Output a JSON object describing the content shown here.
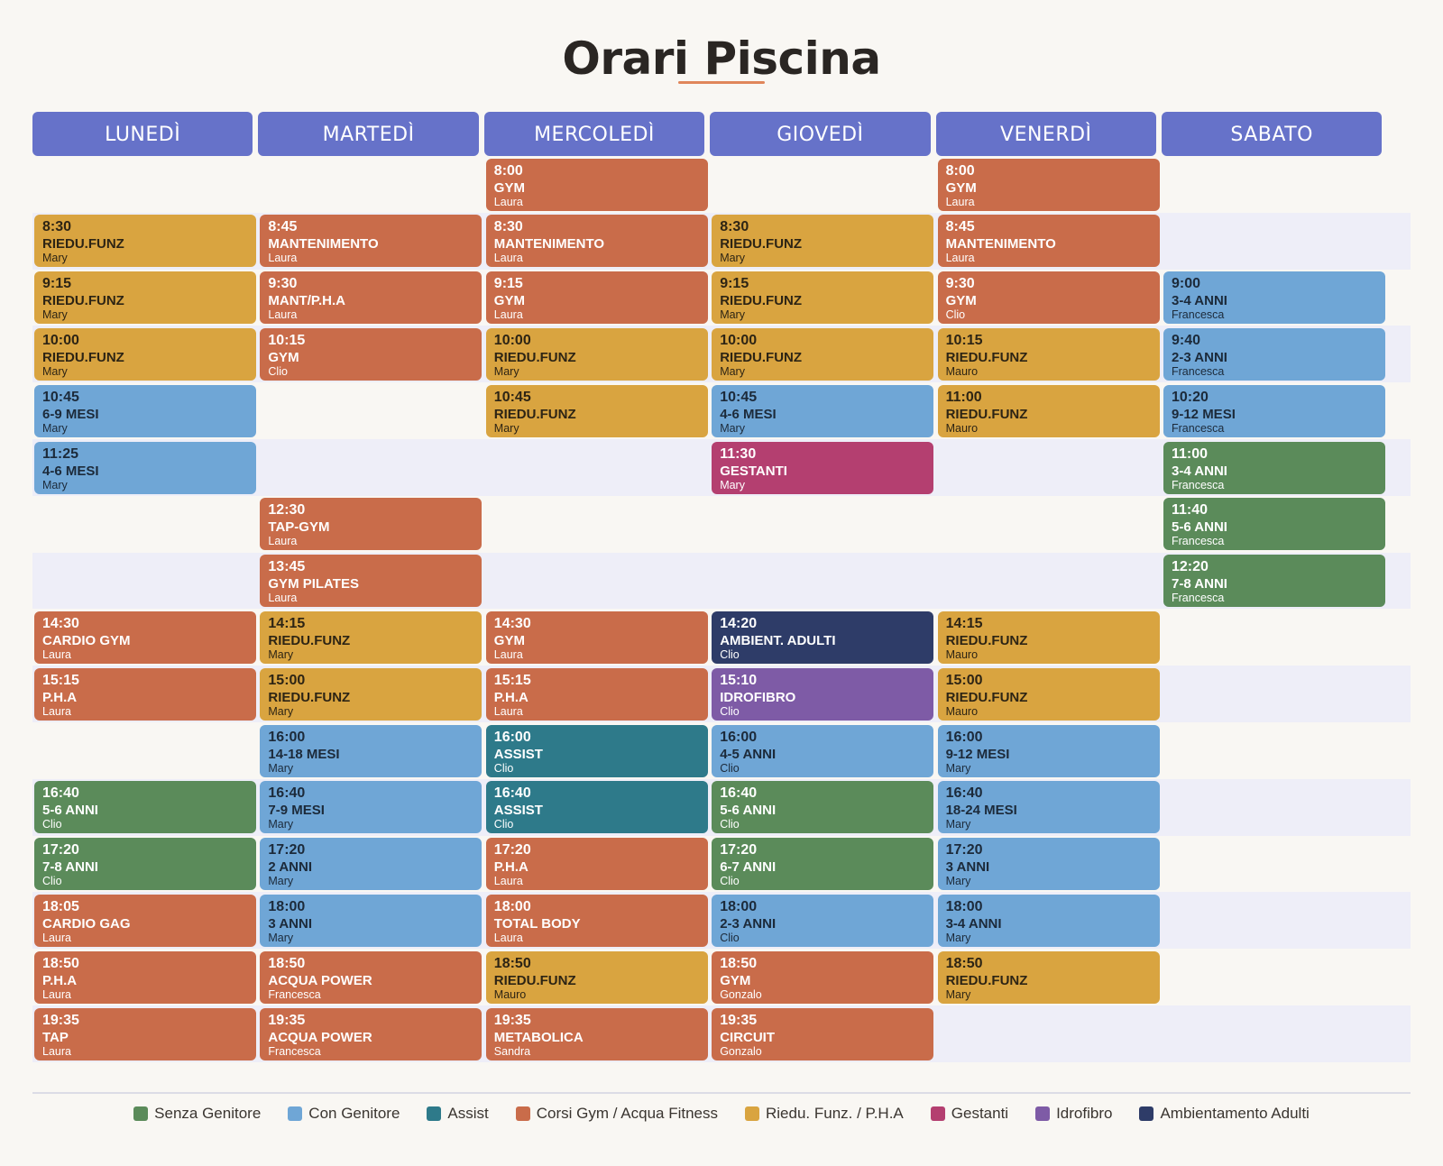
{
  "title": "Orari Piscina",
  "colors": {
    "senza": "#5b8b5a",
    "con": "#6fa6d6",
    "assist": "#2e7a8a",
    "gym": "#c96c4a",
    "riedu": "#d9a440",
    "gestanti": "#b43f70",
    "idro": "#7e5ba6",
    "amb": "#2e3c68",
    "header": "#6672c9"
  },
  "days": [
    {
      "name": "LUNEDÌ",
      "classes": [
        {
          "row": 1,
          "time": "8:30",
          "name": "RIEDU.FUNZ",
          "instructor": "Mary",
          "cat": "riedu"
        },
        {
          "row": 2,
          "time": "9:15",
          "name": "RIEDU.FUNZ",
          "instructor": "Mary",
          "cat": "riedu"
        },
        {
          "row": 3,
          "time": "10:00",
          "name": "RIEDU.FUNZ",
          "instructor": "Mary",
          "cat": "riedu"
        },
        {
          "row": 4,
          "time": "10:45",
          "name": "6-9 MESI",
          "instructor": "Mary",
          "cat": "con"
        },
        {
          "row": 5,
          "time": "11:25",
          "name": "4-6 MESI",
          "instructor": "Mary",
          "cat": "con"
        },
        {
          "row": 8,
          "time": "14:30",
          "name": "CARDIO GYM",
          "instructor": "Laura",
          "cat": "gym"
        },
        {
          "row": 9,
          "time": "15:15",
          "name": "P.H.A",
          "instructor": "Laura",
          "cat": "gym"
        },
        {
          "row": 11,
          "time": "16:40",
          "name": "5-6 ANNI",
          "instructor": "Clio",
          "cat": "senza"
        },
        {
          "row": 12,
          "time": "17:20",
          "name": "7-8 ANNI",
          "instructor": "Clio",
          "cat": "senza"
        },
        {
          "row": 13,
          "time": "18:05",
          "name": "CARDIO GAG",
          "instructor": "Laura",
          "cat": "gym"
        },
        {
          "row": 14,
          "time": "18:50",
          "name": "P.H.A",
          "instructor": "Laura",
          "cat": "gym"
        },
        {
          "row": 15,
          "time": "19:35",
          "name": "TAP",
          "instructor": "Laura",
          "cat": "gym"
        }
      ]
    },
    {
      "name": "MARTEDÌ",
      "classes": [
        {
          "row": 1,
          "time": "8:45",
          "name": "MANTENIMENTO",
          "instructor": "Laura",
          "cat": "gym"
        },
        {
          "row": 2,
          "time": "9:30",
          "name": "MANT/P.H.A",
          "instructor": "Laura",
          "cat": "gym"
        },
        {
          "row": 3,
          "time": "10:15",
          "name": "GYM",
          "instructor": "Clio",
          "cat": "gym"
        },
        {
          "row": 6,
          "time": "12:30",
          "name": "TAP-GYM",
          "instructor": "Laura",
          "cat": "gym"
        },
        {
          "row": 7,
          "time": "13:45",
          "name": "GYM PILATES",
          "instructor": "Laura",
          "cat": "gym"
        },
        {
          "row": 8,
          "time": "14:15",
          "name": "RIEDU.FUNZ",
          "instructor": "Mary",
          "cat": "riedu"
        },
        {
          "row": 9,
          "time": "15:00",
          "name": "RIEDU.FUNZ",
          "instructor": "Mary",
          "cat": "riedu"
        },
        {
          "row": 10,
          "time": "16:00",
          "name": "14-18 MESI",
          "instructor": "Mary",
          "cat": "con"
        },
        {
          "row": 11,
          "time": "16:40",
          "name": "7-9 MESI",
          "instructor": "Mary",
          "cat": "con"
        },
        {
          "row": 12,
          "time": "17:20",
          "name": "2 ANNI",
          "instructor": "Mary",
          "cat": "con"
        },
        {
          "row": 13,
          "time": "18:00",
          "name": "3 ANNI",
          "instructor": "Mary",
          "cat": "con"
        },
        {
          "row": 14,
          "time": "18:50",
          "name": "ACQUA POWER",
          "instructor": "Francesca",
          "cat": "gym"
        },
        {
          "row": 15,
          "time": "19:35",
          "name": "ACQUA POWER",
          "instructor": "Francesca",
          "cat": "gym"
        }
      ]
    },
    {
      "name": "MERCOLEDÌ",
      "classes": [
        {
          "row": 0,
          "time": "8:00",
          "name": "GYM",
          "instructor": "Laura",
          "cat": "gym"
        },
        {
          "row": 1,
          "time": "8:30",
          "name": "MANTENIMENTO",
          "instructor": "Laura",
          "cat": "gym"
        },
        {
          "row": 2,
          "time": "9:15",
          "name": "GYM",
          "instructor": "Laura",
          "cat": "gym"
        },
        {
          "row": 3,
          "time": "10:00",
          "name": "RIEDU.FUNZ",
          "instructor": "Mary",
          "cat": "riedu"
        },
        {
          "row": 4,
          "time": "10:45",
          "name": "RIEDU.FUNZ",
          "instructor": "Mary",
          "cat": "riedu"
        },
        {
          "row": 8,
          "time": "14:30",
          "name": "GYM",
          "instructor": "Laura",
          "cat": "gym"
        },
        {
          "row": 9,
          "time": "15:15",
          "name": "P.H.A",
          "instructor": "Laura",
          "cat": "gym"
        },
        {
          "row": 10,
          "time": "16:00",
          "name": "ASSIST",
          "instructor": "Clio",
          "cat": "assist"
        },
        {
          "row": 11,
          "time": "16:40",
          "name": "ASSIST",
          "instructor": "Clio",
          "cat": "assist"
        },
        {
          "row": 12,
          "time": "17:20",
          "name": "P.H.A",
          "instructor": "Laura",
          "cat": "gym"
        },
        {
          "row": 13,
          "time": "18:00",
          "name": "TOTAL BODY",
          "instructor": "Laura",
          "cat": "gym"
        },
        {
          "row": 14,
          "time": "18:50",
          "name": "RIEDU.FUNZ",
          "instructor": "Mauro",
          "cat": "riedu"
        },
        {
          "row": 15,
          "time": "19:35",
          "name": "METABOLICA",
          "instructor": "Sandra",
          "cat": "gym"
        }
      ]
    },
    {
      "name": "GIOVEDÌ",
      "classes": [
        {
          "row": 1,
          "time": "8:30",
          "name": "RIEDU.FUNZ",
          "instructor": "Mary",
          "cat": "riedu"
        },
        {
          "row": 2,
          "time": "9:15",
          "name": "RIEDU.FUNZ",
          "instructor": "Mary",
          "cat": "riedu"
        },
        {
          "row": 3,
          "time": "10:00",
          "name": "RIEDU.FUNZ",
          "instructor": "Mary",
          "cat": "riedu"
        },
        {
          "row": 4,
          "time": "10:45",
          "name": "4-6 MESI",
          "instructor": "Mary",
          "cat": "con"
        },
        {
          "row": 5,
          "time": "11:30",
          "name": "GESTANTI",
          "instructor": "Mary",
          "cat": "gestanti"
        },
        {
          "row": 8,
          "time": "14:20",
          "name": "AMBIENT. ADULTI",
          "instructor": "Clio",
          "cat": "amb"
        },
        {
          "row": 9,
          "time": "15:10",
          "name": "IDROFIBRO",
          "instructor": "Clio",
          "cat": "idro"
        },
        {
          "row": 10,
          "time": "16:00",
          "name": "4-5 ANNI",
          "instructor": "Clio",
          "cat": "con"
        },
        {
          "row": 11,
          "time": "16:40",
          "name": "5-6 ANNI",
          "instructor": "Clio",
          "cat": "senza"
        },
        {
          "row": 12,
          "time": "17:20",
          "name": "6-7 ANNI",
          "instructor": "Clio",
          "cat": "senza"
        },
        {
          "row": 13,
          "time": "18:00",
          "name": "2-3 ANNI",
          "instructor": "Clio",
          "cat": "con"
        },
        {
          "row": 14,
          "time": "18:50",
          "name": "GYM",
          "instructor": "Gonzalo",
          "cat": "gym"
        },
        {
          "row": 15,
          "time": "19:35",
          "name": "CIRCUIT",
          "instructor": "Gonzalo",
          "cat": "gym"
        }
      ]
    },
    {
      "name": "VENERDÌ",
      "classes": [
        {
          "row": 0,
          "time": "8:00",
          "name": "GYM",
          "instructor": "Laura",
          "cat": "gym"
        },
        {
          "row": 1,
          "time": "8:45",
          "name": "MANTENIMENTO",
          "instructor": "Laura",
          "cat": "gym"
        },
        {
          "row": 2,
          "time": "9:30",
          "name": "GYM",
          "instructor": "Clio",
          "cat": "gym"
        },
        {
          "row": 3,
          "time": "10:15",
          "name": "RIEDU.FUNZ",
          "instructor": "Mauro",
          "cat": "riedu"
        },
        {
          "row": 4,
          "time": "11:00",
          "name": "RIEDU.FUNZ",
          "instructor": "Mauro",
          "cat": "riedu"
        },
        {
          "row": 8,
          "time": "14:15",
          "name": "RIEDU.FUNZ",
          "instructor": "Mauro",
          "cat": "riedu"
        },
        {
          "row": 9,
          "time": "15:00",
          "name": "RIEDU.FUNZ",
          "instructor": "Mauro",
          "cat": "riedu"
        },
        {
          "row": 10,
          "time": "16:00",
          "name": "9-12 MESI",
          "instructor": "Mary",
          "cat": "con"
        },
        {
          "row": 11,
          "time": "16:40",
          "name": "18-24 MESI",
          "instructor": "Mary",
          "cat": "con"
        },
        {
          "row": 12,
          "time": "17:20",
          "name": "3 ANNI",
          "instructor": "Mary",
          "cat": "con"
        },
        {
          "row": 13,
          "time": "18:00",
          "name": "3-4 ANNI",
          "instructor": "Mary",
          "cat": "con"
        },
        {
          "row": 14,
          "time": "18:50",
          "name": "RIEDU.FUNZ",
          "instructor": "Mary",
          "cat": "riedu"
        }
      ]
    },
    {
      "name": "SABATO",
      "classes": [
        {
          "row": 2,
          "time": "9:00",
          "name": "3-4 ANNI",
          "instructor": "Francesca",
          "cat": "con"
        },
        {
          "row": 3,
          "time": "9:40",
          "name": "2-3 ANNI",
          "instructor": "Francesca",
          "cat": "con"
        },
        {
          "row": 4,
          "time": "10:20",
          "name": "9-12 MESI",
          "instructor": "Francesca",
          "cat": "con"
        },
        {
          "row": 5,
          "time": "11:00",
          "name": "3-4 ANNI",
          "instructor": "Francesca",
          "cat": "senza"
        },
        {
          "row": 6,
          "time": "11:40",
          "name": "5-6 ANNI",
          "instructor": "Francesca",
          "cat": "senza"
        },
        {
          "row": 7,
          "time": "12:20",
          "name": "7-8 ANNI",
          "instructor": "Francesca",
          "cat": "senza"
        }
      ]
    }
  ],
  "legend": [
    {
      "label": "Senza Genitore",
      "cat": "senza"
    },
    {
      "label": "Con Genitore",
      "cat": "con"
    },
    {
      "label": "Assist",
      "cat": "assist"
    },
    {
      "label": "Corsi Gym / Acqua Fitness",
      "cat": "gym"
    },
    {
      "label": "Riedu. Funz. / P.H.A",
      "cat": "riedu"
    },
    {
      "label": "Gestanti",
      "cat": "gestanti"
    },
    {
      "label": "Idrofibro",
      "cat": "idro"
    },
    {
      "label": "Ambientamento Adulti",
      "cat": "amb"
    }
  ]
}
